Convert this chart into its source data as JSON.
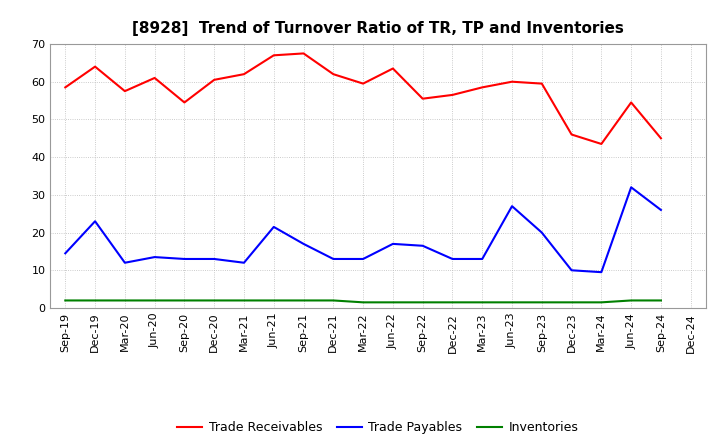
{
  "title": "[8928]  Trend of Turnover Ratio of TR, TP and Inventories",
  "labels": [
    "Sep-19",
    "Dec-19",
    "Mar-20",
    "Jun-20",
    "Sep-20",
    "Dec-20",
    "Mar-21",
    "Jun-21",
    "Sep-21",
    "Dec-21",
    "Mar-22",
    "Jun-22",
    "Sep-22",
    "Dec-22",
    "Mar-23",
    "Jun-23",
    "Sep-23",
    "Dec-23",
    "Mar-24",
    "Jun-24",
    "Sep-24",
    "Dec-24"
  ],
  "trade_receivables": [
    58.5,
    64.0,
    57.5,
    61.0,
    54.5,
    60.5,
    62.0,
    67.0,
    67.5,
    62.0,
    59.5,
    63.5,
    55.5,
    56.5,
    58.5,
    60.0,
    59.5,
    46.0,
    43.5,
    54.5,
    45.0,
    null
  ],
  "trade_payables": [
    14.5,
    23.0,
    12.0,
    13.5,
    13.0,
    13.0,
    12.0,
    21.5,
    17.0,
    13.0,
    13.0,
    17.0,
    16.5,
    13.0,
    13.0,
    27.0,
    20.0,
    10.0,
    9.5,
    32.0,
    26.0,
    null
  ],
  "inventories": [
    2.0,
    2.0,
    2.0,
    2.0,
    2.0,
    2.0,
    2.0,
    2.0,
    2.0,
    2.0,
    1.5,
    1.5,
    1.5,
    1.5,
    1.5,
    1.5,
    1.5,
    1.5,
    1.5,
    2.0,
    2.0,
    null
  ],
  "tr_color": "#ff0000",
  "tp_color": "#0000ff",
  "inv_color": "#008000",
  "ylim": [
    0.0,
    70.0
  ],
  "yticks": [
    0.0,
    10.0,
    20.0,
    30.0,
    40.0,
    50.0,
    60.0,
    70.0
  ],
  "ytick_labels": [
    "0",
    "10",
    "20",
    "30",
    "40",
    "50",
    "60",
    "70"
  ],
  "grid_color": "#bbbbbb",
  "bg_color": "#ffffff",
  "plot_bg_color": "#ffffff",
  "legend_labels": [
    "Trade Receivables",
    "Trade Payables",
    "Inventories"
  ],
  "title_fontsize": 11,
  "axis_fontsize": 8,
  "legend_fontsize": 9,
  "linewidth": 1.5
}
